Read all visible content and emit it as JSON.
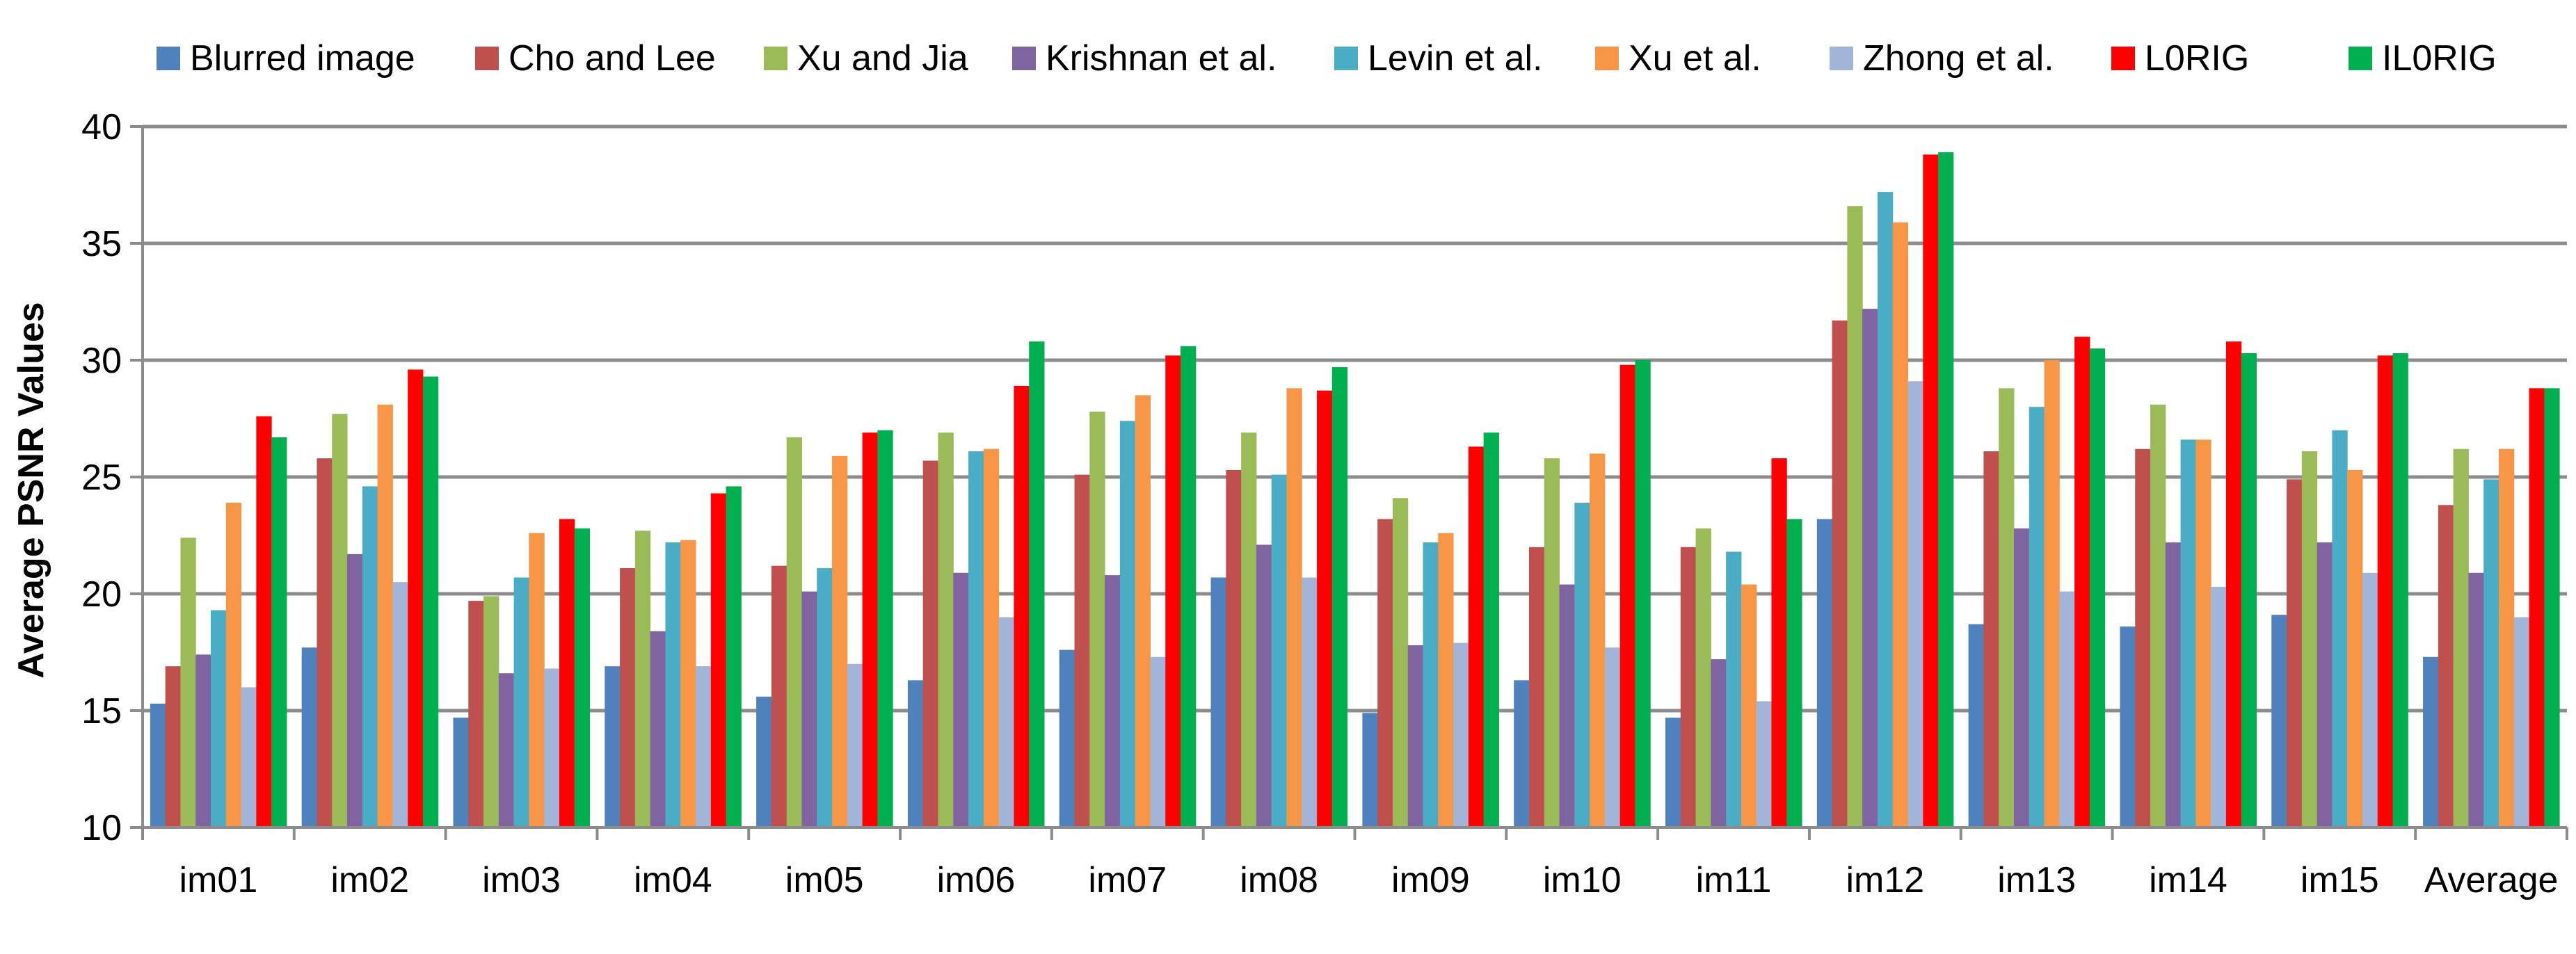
{
  "chart_data": {
    "type": "bar",
    "title": "",
    "xlabel": "",
    "ylabel": "Average PSNR Values",
    "ylim": [
      10,
      40
    ],
    "yticks": [
      10,
      15,
      20,
      25,
      30,
      35,
      40
    ],
    "grid": true,
    "legend_position": "top",
    "categories": [
      "im01",
      "im02",
      "im03",
      "im04",
      "im05",
      "im06",
      "im07",
      "im08",
      "im09",
      "im10",
      "im11",
      "im12",
      "im13",
      "im14",
      "im15",
      "Average"
    ],
    "series": [
      {
        "name": "Blurred image",
        "color": "#4F81BD",
        "values": [
          15.3,
          17.7,
          14.7,
          16.9,
          15.6,
          16.3,
          17.6,
          20.7,
          14.9,
          16.3,
          14.7,
          23.2,
          18.7,
          18.6,
          19.1,
          17.3
        ]
      },
      {
        "name": "Cho and Lee",
        "color": "#C0504D",
        "values": [
          16.9,
          25.8,
          19.7,
          21.1,
          21.2,
          25.7,
          25.1,
          25.3,
          23.2,
          22.0,
          22.0,
          31.7,
          26.1,
          26.2,
          24.9,
          23.8
        ]
      },
      {
        "name": "Xu and Jia",
        "color": "#9BBB59",
        "values": [
          22.4,
          27.7,
          19.9,
          22.7,
          26.7,
          26.9,
          27.8,
          26.9,
          24.1,
          25.8,
          22.8,
          36.6,
          28.8,
          28.1,
          26.1,
          26.2
        ]
      },
      {
        "name": "Krishnan et al.",
        "color": "#8064A2",
        "values": [
          17.4,
          21.7,
          16.6,
          18.4,
          20.1,
          20.9,
          20.8,
          22.1,
          17.8,
          20.4,
          17.2,
          32.2,
          22.8,
          22.2,
          22.2,
          20.9
        ]
      },
      {
        "name": "Levin et al.",
        "color": "#4BACC6",
        "values": [
          19.3,
          24.6,
          20.7,
          22.2,
          21.1,
          26.1,
          27.4,
          25.1,
          22.2,
          23.9,
          21.8,
          37.2,
          28.0,
          26.6,
          27.0,
          24.9
        ]
      },
      {
        "name": "Xu et al.",
        "color": "#F79646",
        "values": [
          23.9,
          28.1,
          22.6,
          22.3,
          25.9,
          26.2,
          28.5,
          28.8,
          22.6,
          26.0,
          20.4,
          35.9,
          30.0,
          26.6,
          25.3,
          26.2
        ]
      },
      {
        "name": "Zhong et al.",
        "color": "#A3B4D9",
        "values": [
          16.0,
          20.5,
          16.8,
          16.9,
          17.0,
          19.0,
          17.3,
          20.7,
          17.9,
          17.7,
          15.4,
          29.1,
          20.1,
          20.3,
          20.9,
          19.0
        ]
      },
      {
        "name": "L0RIG",
        "color": "#FF0000",
        "values": [
          27.6,
          29.6,
          23.2,
          24.3,
          26.9,
          28.9,
          30.2,
          28.7,
          26.3,
          29.8,
          25.8,
          38.8,
          31.0,
          30.8,
          30.2,
          28.8
        ]
      },
      {
        "name": "IL0RIG",
        "color": "#00B050",
        "values": [
          26.7,
          29.3,
          22.8,
          24.6,
          27.0,
          30.8,
          30.6,
          29.7,
          26.9,
          30.0,
          23.2,
          38.9,
          30.5,
          30.3,
          30.3,
          28.8
        ]
      }
    ]
  }
}
